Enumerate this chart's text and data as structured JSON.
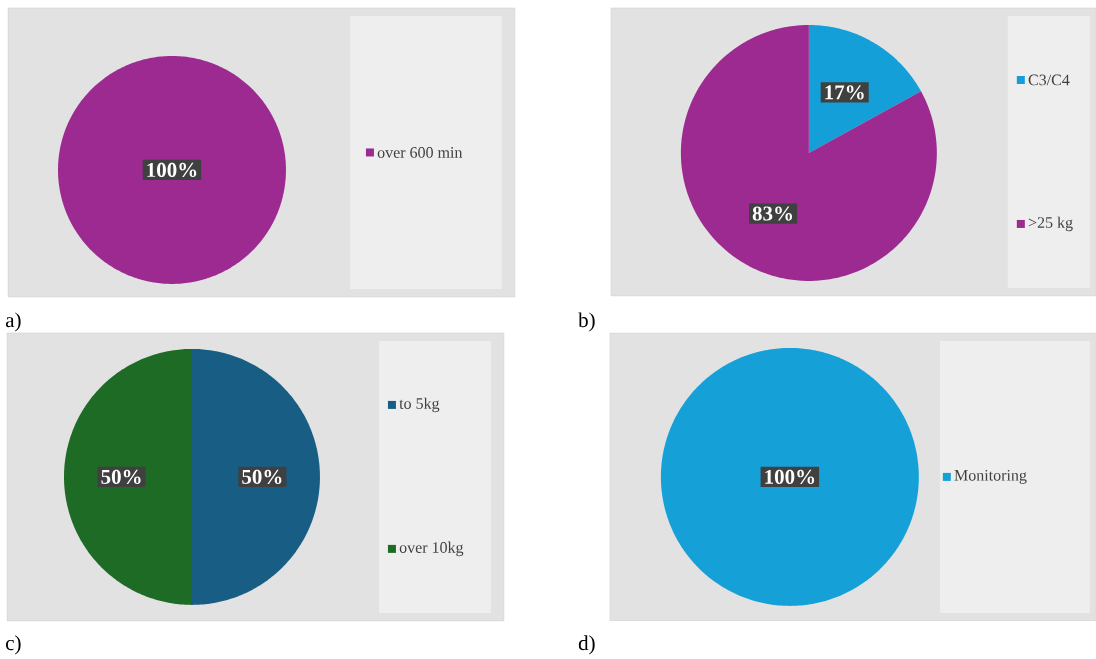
{
  "chart_data": [
    {
      "type": "pie",
      "title": "a)",
      "categories": [
        "over 600 min"
      ],
      "values": [
        100
      ],
      "colors": [
        "#9c2a90"
      ],
      "value_labels": [
        "100%"
      ],
      "legend": "right"
    },
    {
      "type": "pie",
      "title": "b)",
      "categories": [
        "C3/C4",
        ">25 kg"
      ],
      "values": [
        17,
        83
      ],
      "colors": [
        "#149fd8",
        "#9c2a90"
      ],
      "value_labels": [
        "17%",
        "83%"
      ],
      "legend": "right"
    },
    {
      "type": "pie",
      "title": "c)",
      "categories": [
        "to 5kg",
        "over 10kg"
      ],
      "values": [
        50,
        50
      ],
      "colors": [
        "#185e84",
        "#1d6b25"
      ],
      "value_labels": [
        "50%",
        "50%"
      ],
      "legend": "right"
    },
    {
      "type": "pie",
      "title": "d)",
      "categories": [
        "Monitoring"
      ],
      "values": [
        100
      ],
      "colors": [
        "#16a0d8"
      ],
      "value_labels": [
        "100%"
      ],
      "legend": "right"
    }
  ]
}
